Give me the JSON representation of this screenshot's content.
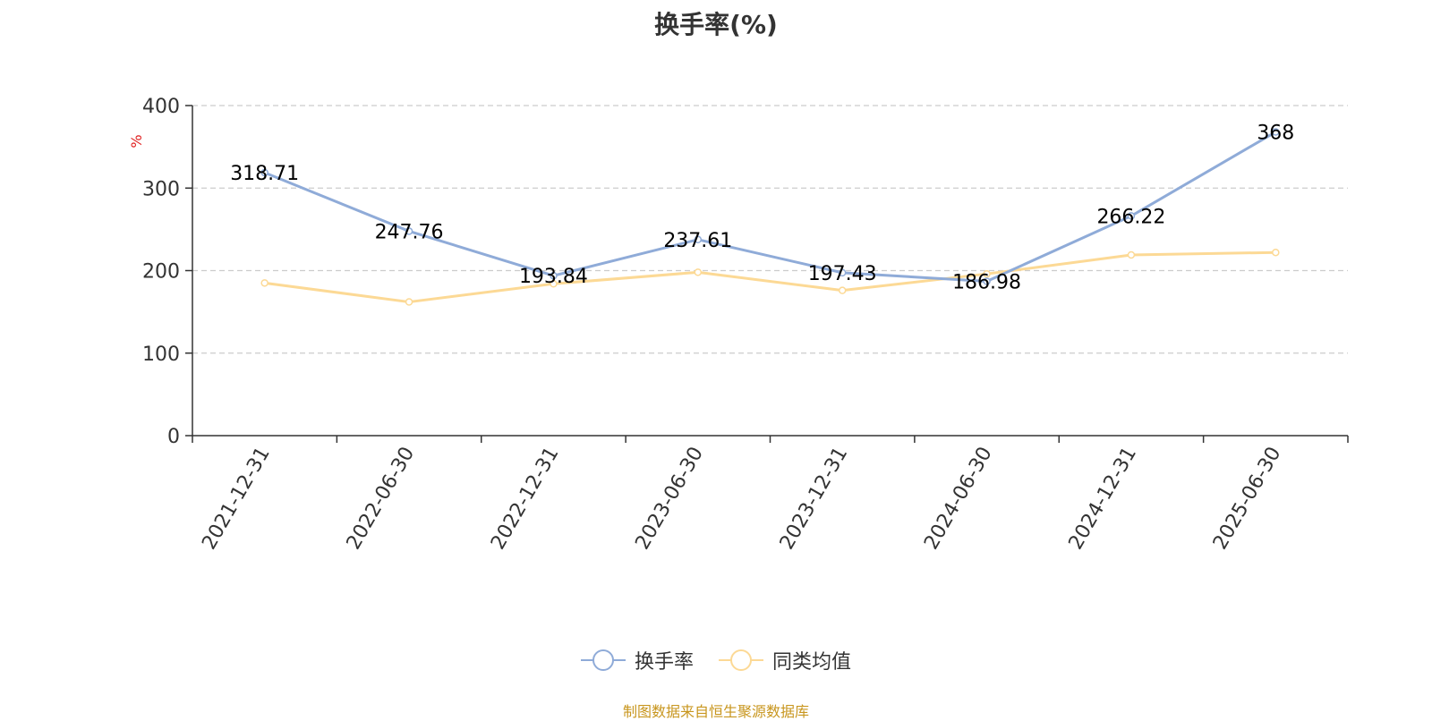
{
  "chart_data": {
    "type": "line",
    "title": "换手率(%)",
    "ylabel": "%",
    "xlabel": "",
    "categories": [
      "2021-12-31",
      "2022-06-30",
      "2022-12-31",
      "2023-06-30",
      "2023-12-31",
      "2024-06-30",
      "2024-12-31",
      "2025-06-30"
    ],
    "ylim": [
      0,
      400
    ],
    "yticks": [
      0,
      100,
      200,
      300,
      400
    ],
    "grid": "horizontal-dashed",
    "legend_position": "bottom",
    "series": [
      {
        "name": "换手率",
        "color": "#8fabd8",
        "values": [
          318.71,
          247.76,
          193.84,
          237.61,
          197.43,
          186.98,
          266.22,
          368
        ],
        "data_labels": [
          "318.71",
          "247.76",
          "193.84",
          "237.61",
          "197.43",
          "186.98",
          "266.22",
          "368"
        ]
      },
      {
        "name": "同类均值",
        "color": "#fcd995",
        "values": [
          185,
          162,
          184,
          198,
          176,
          196,
          219,
          222
        ]
      }
    ]
  },
  "source_note": "制图数据来自恒生聚源数据库",
  "source_note_color": "#c8961e",
  "ylabel_color": "#e02020",
  "axis_color": "#333333",
  "grid_color": "#cccccc"
}
